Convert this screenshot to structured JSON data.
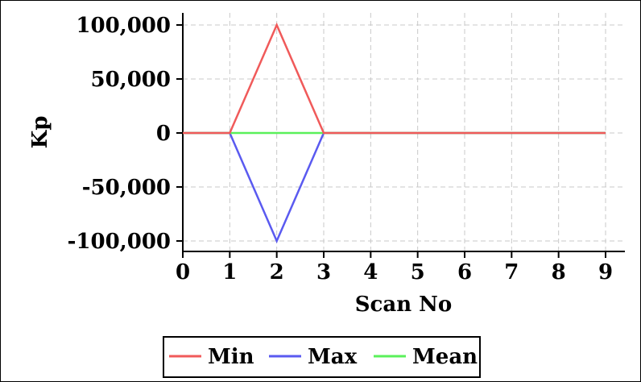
{
  "chart_data": {
    "type": "line",
    "xlabel": "Scan No",
    "ylabel": "Kp",
    "xlim": [
      0,
      9.5
    ],
    "ylim": [
      -110000,
      110000
    ],
    "x_ticks": [
      0,
      1,
      2,
      3,
      4,
      5,
      6,
      7,
      8,
      9
    ],
    "y_ticks": [
      100000,
      50000,
      0,
      -50000,
      -100000
    ],
    "x_tick_labels": [
      "0",
      "1",
      "2",
      "3",
      "4",
      "5",
      "6",
      "7",
      "8",
      "9"
    ],
    "y_tick_labels": [
      "100,000",
      "50,000",
      "0",
      "-50,000",
      "-100,000"
    ],
    "grid": true,
    "legend_position": "bottom",
    "series": [
      {
        "name": "Min",
        "color": "#f05a5a",
        "x": [
          0,
          1,
          2,
          3,
          4,
          5,
          6,
          7,
          8,
          9
        ],
        "y": [
          0,
          0,
          100000,
          0,
          0,
          0,
          0,
          0,
          0,
          0
        ]
      },
      {
        "name": "Max",
        "color": "#5a5af0",
        "x": [
          0,
          1,
          2,
          3,
          4,
          5,
          6,
          7,
          8,
          9
        ],
        "y": [
          0,
          0,
          -100000,
          0,
          0,
          0,
          0,
          0,
          0,
          0
        ]
      },
      {
        "name": "Mean",
        "color": "#5af05a",
        "x": [
          0,
          1,
          2,
          3,
          4,
          5,
          6,
          7,
          8,
          9
        ],
        "y": [
          0,
          0,
          0,
          0,
          0,
          0,
          0,
          0,
          0,
          0
        ]
      }
    ]
  }
}
